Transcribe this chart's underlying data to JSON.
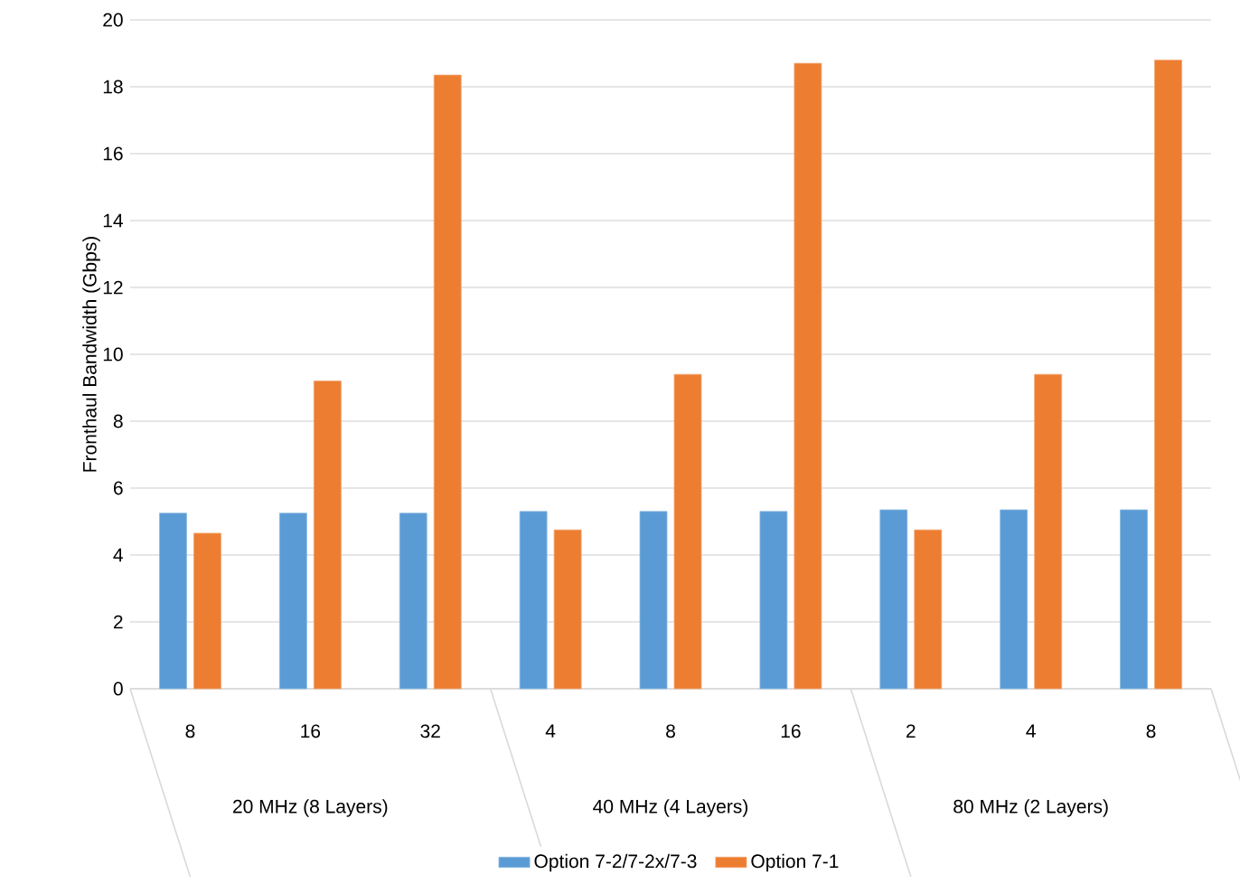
{
  "chart_data": {
    "type": "bar",
    "ylabel": "Fronthaul Bandwidth (Gbps)",
    "categories": [
      "8",
      "16",
      "32",
      "4",
      "8",
      "16",
      "2",
      "4",
      "8"
    ],
    "annotations": [
      "20 MHz (8 Layers)",
      "40 MHz (4 Layers)",
      "80 MHz (2 Layers)"
    ],
    "series": [
      {
        "name": "Option 7-2/7-2x/7-3",
        "color": "#5b9bd5",
        "values": [
          5.25,
          5.25,
          5.25,
          5.3,
          5.3,
          5.3,
          5.35,
          5.35,
          5.35
        ]
      },
      {
        "name": "Option 7-1",
        "color": "#ed7d31",
        "values": [
          4.65,
          9.2,
          18.35,
          4.75,
          9.4,
          18.7,
          4.75,
          9.4,
          18.8
        ]
      }
    ],
    "ylim": [
      0,
      20
    ],
    "yticks": [
      0,
      2,
      4,
      6,
      8,
      10,
      12,
      14,
      16,
      18,
      20
    ],
    "grid": "y",
    "legend": "bottom"
  }
}
